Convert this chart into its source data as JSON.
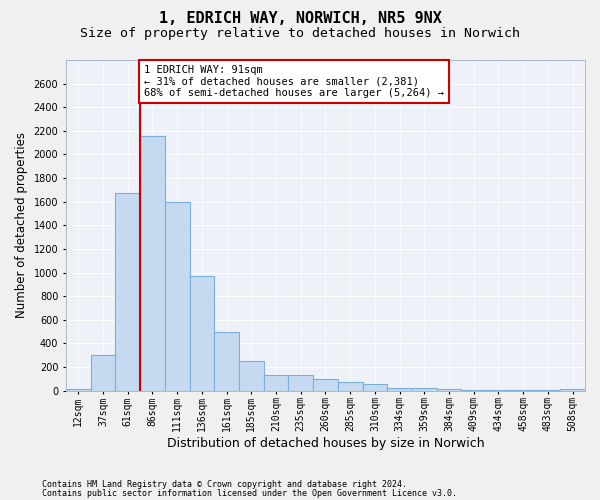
{
  "title1": "1, EDRICH WAY, NORWICH, NR5 9NX",
  "title2": "Size of property relative to detached houses in Norwich",
  "xlabel": "Distribution of detached houses by size in Norwich",
  "ylabel": "Number of detached properties",
  "categories": [
    "12sqm",
    "37sqm",
    "61sqm",
    "86sqm",
    "111sqm",
    "136sqm",
    "161sqm",
    "185sqm",
    "210sqm",
    "235sqm",
    "260sqm",
    "285sqm",
    "310sqm",
    "334sqm",
    "359sqm",
    "384sqm",
    "409sqm",
    "434sqm",
    "458sqm",
    "483sqm",
    "508sqm"
  ],
  "values": [
    15,
    300,
    1670,
    2160,
    1600,
    970,
    500,
    250,
    130,
    130,
    100,
    70,
    55,
    20,
    20,
    10,
    5,
    3,
    3,
    3,
    10
  ],
  "bar_color": "#c5daf0",
  "bar_edge_color": "#7ab0d8",
  "annotation_text": "1 EDRICH WAY: 91sqm\n← 31% of detached houses are smaller (2,381)\n68% of semi-detached houses are larger (5,264) →",
  "vline_color": "#cc0000",
  "vline_x_index": 3,
  "ylim": [
    0,
    2800
  ],
  "yticks": [
    0,
    200,
    400,
    600,
    800,
    1000,
    1200,
    1400,
    1600,
    1800,
    2000,
    2200,
    2400,
    2600
  ],
  "footnote1": "Contains HM Land Registry data © Crown copyright and database right 2024.",
  "footnote2": "Contains public sector information licensed under the Open Government Licence v3.0.",
  "bg_color": "#eef2f8",
  "grid_color": "#ffffff",
  "title1_fontsize": 11,
  "title2_fontsize": 9.5,
  "xlabel_fontsize": 9,
  "ylabel_fontsize": 8.5,
  "tick_fontsize": 7,
  "annot_fontsize": 7.5,
  "footnote_fontsize": 6
}
